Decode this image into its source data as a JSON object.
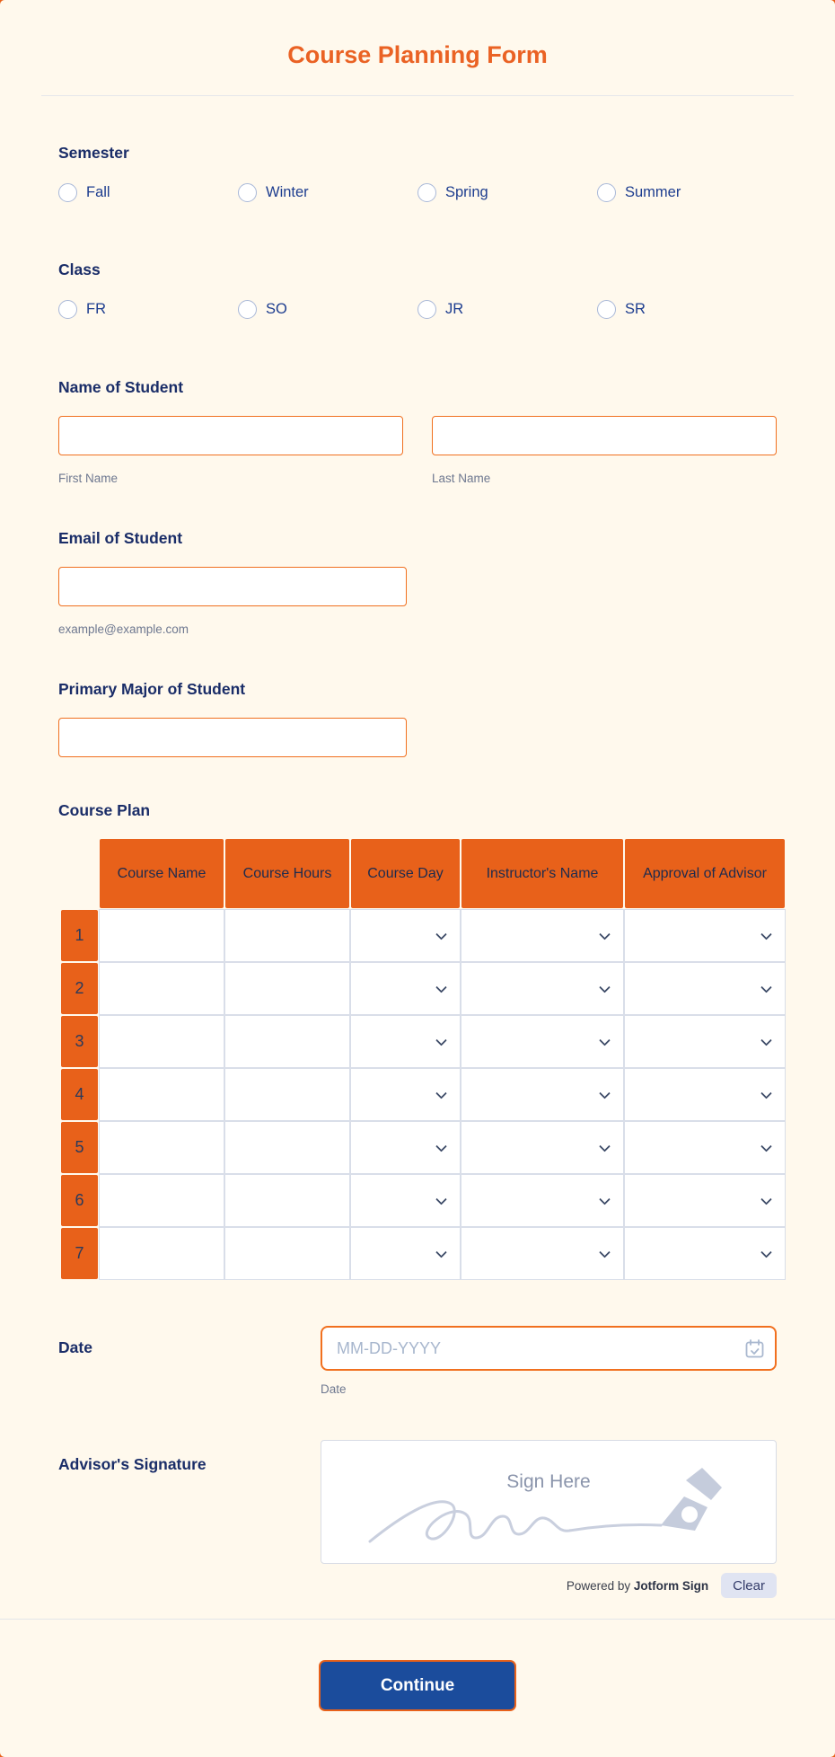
{
  "header": {
    "title": "Course Planning Form"
  },
  "semester": {
    "label": "Semester",
    "options": [
      "Fall",
      "Winter",
      "Spring",
      "Summer"
    ]
  },
  "class": {
    "label": "Class",
    "options": [
      "FR",
      "SO",
      "JR",
      "SR"
    ]
  },
  "name": {
    "label": "Name of Student",
    "first": {
      "value": "",
      "sublabel": "First Name"
    },
    "last": {
      "value": "",
      "sublabel": "Last Name"
    }
  },
  "email": {
    "label": "Email of Student",
    "value": "",
    "sublabel": "example@example.com"
  },
  "major": {
    "label": "Primary Major of Student",
    "value": ""
  },
  "course_plan": {
    "label": "Course Plan",
    "columns": [
      {
        "label": "Course Name",
        "type": "text"
      },
      {
        "label": "Course Hours",
        "type": "text"
      },
      {
        "label": "Course Day",
        "type": "dropdown"
      },
      {
        "label": "Instructor's Name",
        "type": "dropdown"
      },
      {
        "label": "Approval of Advisor",
        "type": "dropdown"
      }
    ],
    "rows": [
      "1",
      "2",
      "3",
      "4",
      "5",
      "6",
      "7"
    ]
  },
  "date": {
    "label": "Date",
    "placeholder": "MM-DD-YYYY",
    "sublabel": "Date",
    "icon": "calendar-icon"
  },
  "signature": {
    "label": "Advisor's Signature",
    "hint": "Sign Here",
    "powered_prefix": "Powered by",
    "brand": "Jotform Sign",
    "clear_label": "Clear"
  },
  "footer": {
    "continue_label": "Continue"
  },
  "colors": {
    "accent_orange": "#E8611A",
    "title_orange": "#EA6224",
    "label_navy": "#1A2D68",
    "option_blue": "#1D3D8F",
    "button_blue": "#1B4C9C",
    "card_cream": "#FFF9ED"
  }
}
